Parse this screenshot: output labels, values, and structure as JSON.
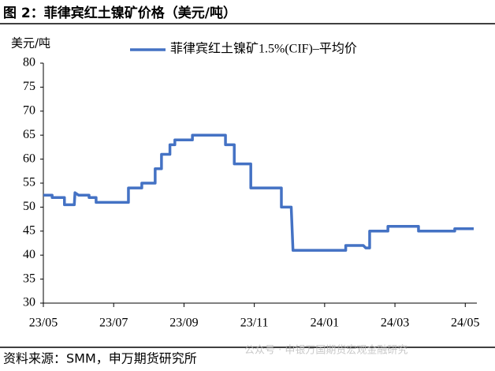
{
  "title": "图 2：菲律宾红土镍矿价格（美元/吨）",
  "source": "资料来源：SMM，申万期货研究所",
  "watermark": "公众号 · 申银万国期货宏观金融研究",
  "chart_data": {
    "type": "line",
    "y_label": "美元/吨",
    "xlim": [
      0,
      12.33
    ],
    "xticks": [
      {
        "value": 0,
        "label": "23/05"
      },
      {
        "value": 2,
        "label": "23/07"
      },
      {
        "value": 4,
        "label": "23/09"
      },
      {
        "value": 6,
        "label": "23/11"
      },
      {
        "value": 8,
        "label": "24/01"
      },
      {
        "value": 10,
        "label": "24/03"
      },
      {
        "value": 12,
        "label": "24/05"
      }
    ],
    "ylim": [
      30,
      80
    ],
    "yticks": [
      30,
      35,
      40,
      45,
      50,
      55,
      60,
      65,
      70,
      75,
      80
    ],
    "legend": "top",
    "x": [
      0,
      0.25,
      0.25,
      0.6,
      0.6,
      0.88,
      0.9,
      1.0,
      1.3,
      1.3,
      1.5,
      1.5,
      2.42,
      2.42,
      2.8,
      2.8,
      3.18,
      3.18,
      3.36,
      3.36,
      3.6,
      3.6,
      3.74,
      3.74,
      4.24,
      4.24,
      5.18,
      5.18,
      5.43,
      5.43,
      5.9,
      5.9,
      6.77,
      6.77,
      7.05,
      7.1,
      8.6,
      8.6,
      9.1,
      9.17,
      9.28,
      9.28,
      9.8,
      9.8,
      10.67,
      10.67,
      11.7,
      11.7,
      12.24
    ],
    "series": [
      {
        "name": "菲律宾红土镍矿1.5%(CIF)–平均价",
        "color": "#4472c4",
        "values": [
          52.5,
          52.5,
          52,
          52,
          50.5,
          50.5,
          53,
          52.5,
          52.5,
          52,
          52,
          51,
          51,
          54,
          54,
          55,
          55,
          58,
          58,
          61,
          61,
          63,
          63,
          64,
          64,
          65,
          65,
          63,
          63,
          59,
          59,
          54,
          54,
          50,
          50,
          41,
          41,
          42,
          42,
          41.5,
          41.5,
          45,
          45,
          46,
          46,
          45,
          45,
          45.5,
          45.5
        ]
      }
    ]
  }
}
